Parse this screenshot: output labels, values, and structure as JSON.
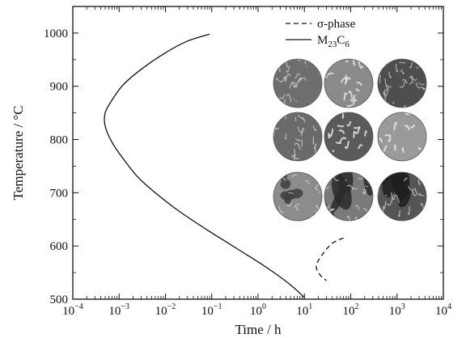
{
  "chart_data": {
    "type": "line",
    "xlabel": "Time / h",
    "ylabel": "Temperature / °C",
    "xscale": "log",
    "xlim": [
      0.0001,
      10000
    ],
    "ylim": [
      500,
      1050
    ],
    "x_ticks": [
      {
        "value": 0.0001,
        "base": "10",
        "exp": "−4"
      },
      {
        "value": 0.001,
        "base": "10",
        "exp": "−3"
      },
      {
        "value": 0.01,
        "base": "10",
        "exp": "−2"
      },
      {
        "value": 0.1,
        "base": "10",
        "exp": "−1"
      },
      {
        "value": 1,
        "base": "10",
        "exp": "0"
      },
      {
        "value": 10,
        "base": "10",
        "exp": "1"
      },
      {
        "value": 100,
        "base": "10",
        "exp": "2"
      },
      {
        "value": 1000,
        "base": "10",
        "exp": "3"
      },
      {
        "value": 10000,
        "base": "10",
        "exp": "4"
      }
    ],
    "y_ticks": [
      500,
      600,
      700,
      800,
      900,
      1000
    ],
    "legend_position": "top-right",
    "legend": [
      {
        "label": "σ-phase",
        "style": "dashed"
      },
      {
        "label_parts": [
          "M",
          "23",
          "C",
          "6"
        ],
        "style": "solid"
      }
    ],
    "series": [
      {
        "style": "solid",
        "points": [
          {
            "x": 0.09,
            "y": 998
          },
          {
            "x": 0.03,
            "y": 985
          },
          {
            "x": 0.01,
            "y": 963
          },
          {
            "x": 0.003,
            "y": 932
          },
          {
            "x": 0.0012,
            "y": 902
          },
          {
            "x": 0.0007,
            "y": 874
          },
          {
            "x": 0.0005,
            "y": 850
          },
          {
            "x": 0.0005,
            "y": 825
          },
          {
            "x": 0.0007,
            "y": 795
          },
          {
            "x": 0.0012,
            "y": 765
          },
          {
            "x": 0.0025,
            "y": 730
          },
          {
            "x": 0.006,
            "y": 700
          },
          {
            "x": 0.02,
            "y": 665
          },
          {
            "x": 0.08,
            "y": 630
          },
          {
            "x": 0.35,
            "y": 595
          },
          {
            "x": 1.5,
            "y": 560
          },
          {
            "x": 5,
            "y": 527
          },
          {
            "x": 10,
            "y": 503
          }
        ]
      },
      {
        "style": "dashed",
        "points": [
          {
            "x": 70,
            "y": 615
          },
          {
            "x": 40,
            "y": 605
          },
          {
            "x": 25,
            "y": 585
          },
          {
            "x": 18,
            "y": 563
          },
          {
            "x": 22,
            "y": 545
          },
          {
            "x": 30,
            "y": 535
          }
        ]
      }
    ]
  },
  "micrographs": {
    "name": "microstructure-inset",
    "items": [
      {
        "pattern": "grains-fine",
        "base": "#6e6e6e",
        "fleck": "#d8d8d8"
      },
      {
        "pattern": "worms",
        "base": "#8a8a8a",
        "fleck": "#e8e8e8"
      },
      {
        "pattern": "grains-dark",
        "base": "#4e4e4e",
        "fleck": "#cfcfcf"
      },
      {
        "pattern": "grains-fine",
        "base": "#6a6a6a",
        "fleck": "#dcdcdc"
      },
      {
        "pattern": "worms",
        "base": "#5a5a5a",
        "fleck": "#eeeeee"
      },
      {
        "pattern": "worms",
        "base": "#9a9a9a",
        "fleck": "#f0f0f0"
      },
      {
        "pattern": "blobs",
        "base": "#8c8c8c",
        "fleck": "#3e3e3e"
      },
      {
        "pattern": "bands",
        "base": "#7a7a7a",
        "fleck": "#2a2a2a"
      },
      {
        "pattern": "bands",
        "base": "#555555",
        "fleck": "#1e1e1e"
      }
    ]
  }
}
